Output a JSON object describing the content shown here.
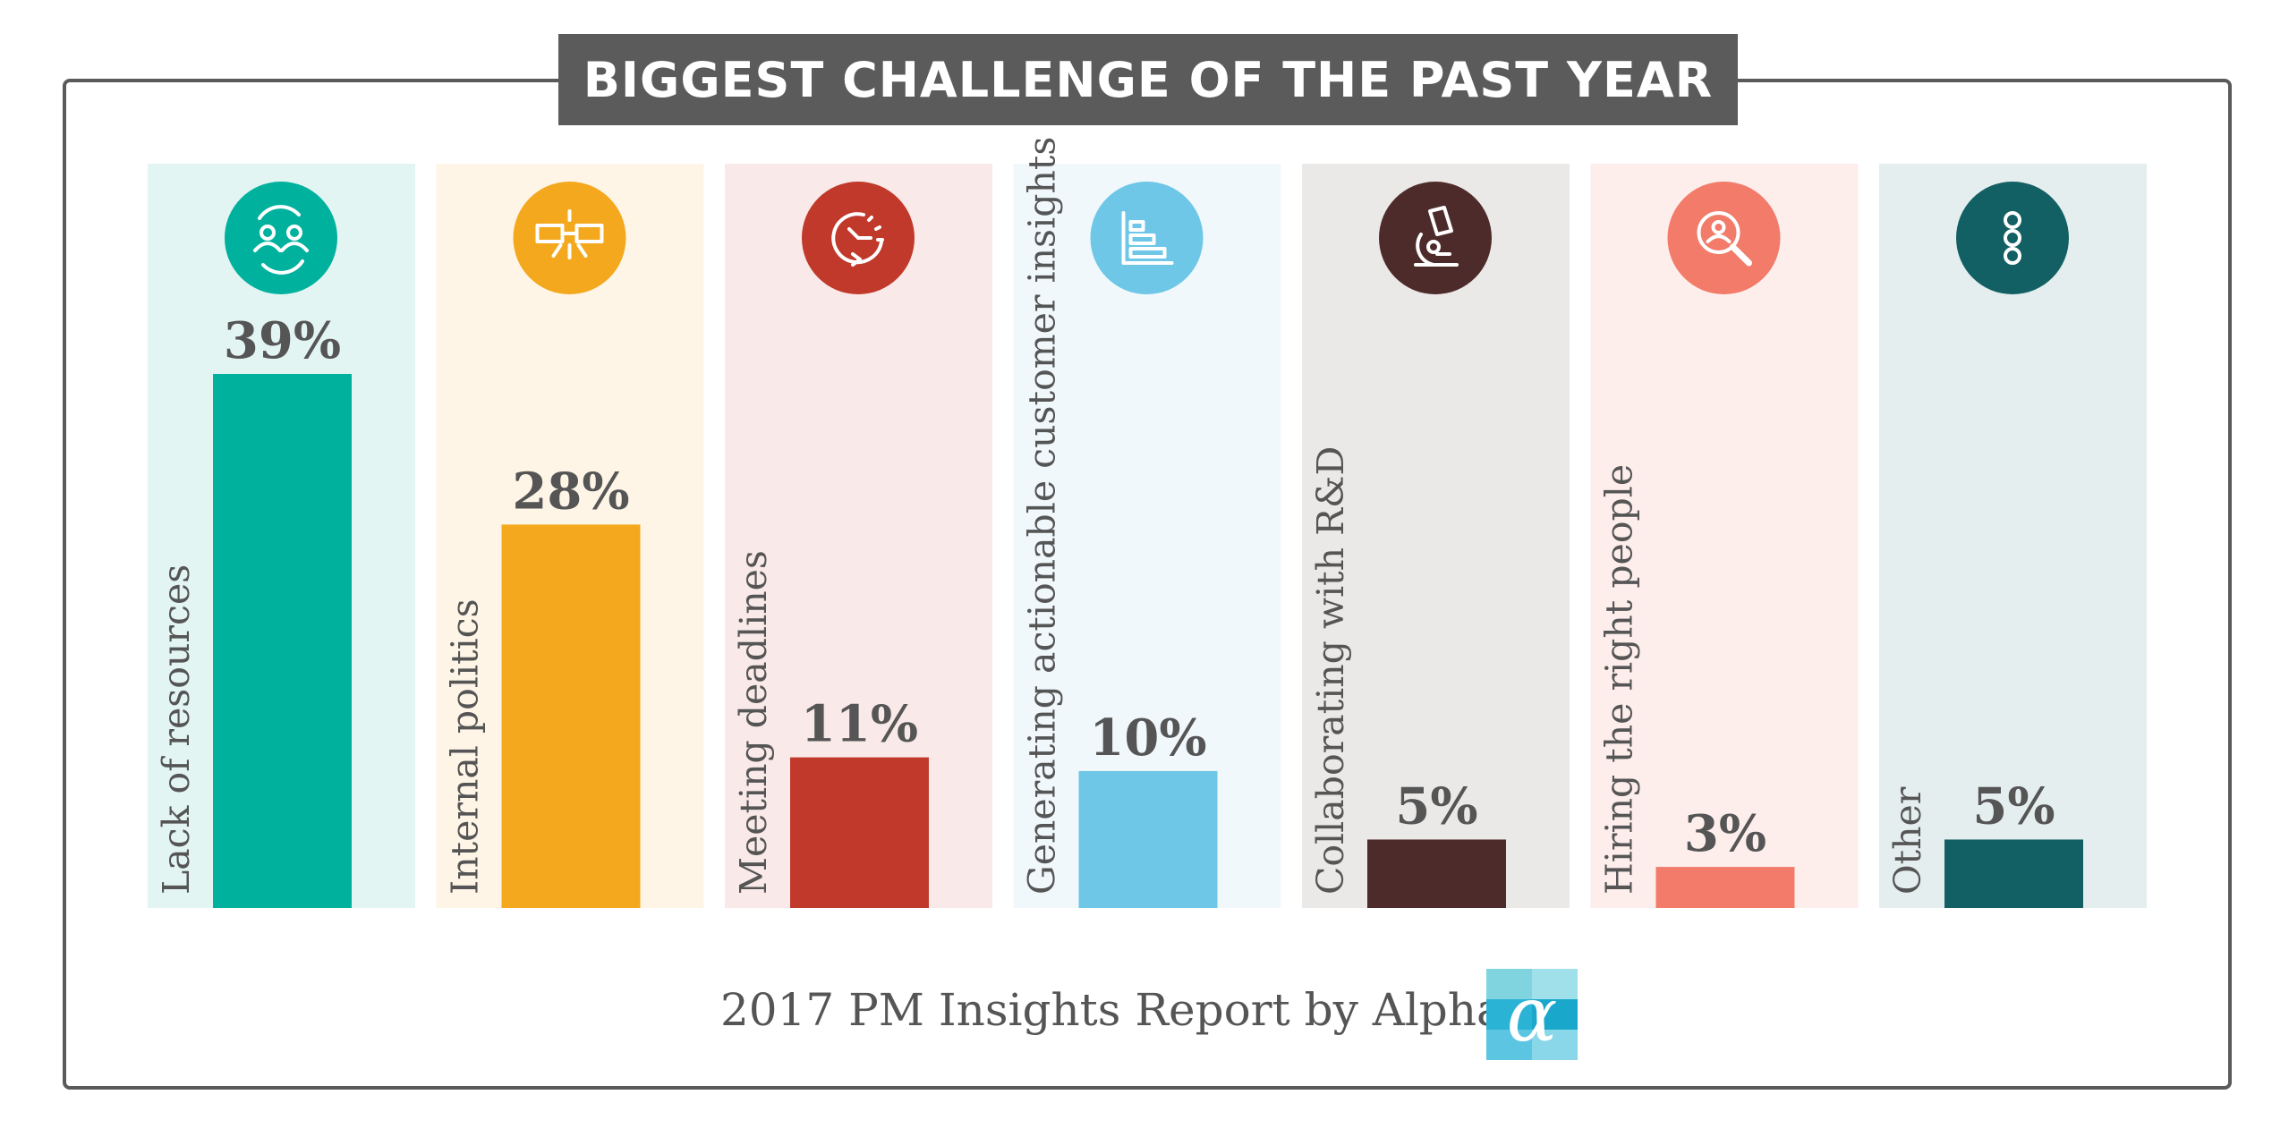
{
  "title": "BIGGEST CHALLENGE OF THE PAST YEAR",
  "footer": {
    "text": "2017 PM Insights Report by Alpha",
    "logo_glyph": "α"
  },
  "chart_data": {
    "type": "bar",
    "title": "BIGGEST CHALLENGE OF THE PAST YEAR",
    "xlabel": "",
    "ylabel": "",
    "ylim": [
      0,
      39
    ],
    "grid": false,
    "legend": "none",
    "categories": [
      "Lack of resources",
      "Internal politics",
      "Meeting deadlines",
      "Generating actionable customer insights",
      "Collaborating with R&D",
      "Hiring the right people",
      "Other"
    ],
    "values": [
      39,
      28,
      11,
      10,
      5,
      3,
      5
    ],
    "value_labels": [
      "39%",
      "28%",
      "11%",
      "10%",
      "5%",
      "3%",
      "5%"
    ],
    "bar_colors": [
      "#00b19d",
      "#f4a81d",
      "#c0392b",
      "#6ec7e6",
      "#4e2b2b",
      "#f27b6a",
      "#125f64"
    ],
    "panel_colors": [
      "#e2f5f2",
      "#fef5e7",
      "#f9e9e8",
      "#f0f8fc",
      "#ebe9e7",
      "#fdeeec",
      "#e5eeee"
    ],
    "icons": [
      "people-exchange-icon",
      "handshake-icon",
      "stopwatch-icon",
      "bar-chart-icon",
      "microscope-icon",
      "person-search-icon",
      "more-options-icon"
    ]
  }
}
